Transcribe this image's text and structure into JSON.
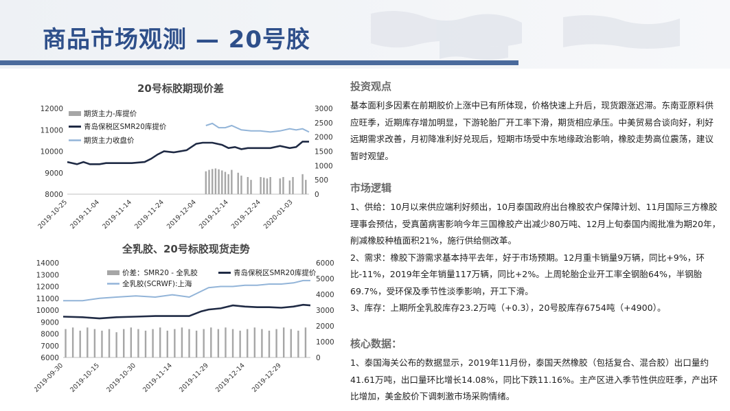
{
  "page": {
    "title": "商品市场观测 — 20号胶"
  },
  "colors": {
    "title": "#2e4f8a",
    "bar_fill": "#a6a6a6",
    "line_dark": "#1f2a44",
    "line_light": "#92b4d8"
  },
  "charts": {
    "top": {
      "title": "20号标胶期现价差",
      "legend": [
        "期货主力-库提价",
        "青岛保税区SMR20库提价",
        "期货主力收盘价"
      ],
      "x_labels": [
        "2019-10-25",
        "2019-11-04",
        "2019-11-14",
        "2019-11-24",
        "2019-12-04",
        "2019-12-14",
        "2019-12-24",
        "2020-01-03"
      ],
      "y_left_ticks": [
        "12000",
        "11000",
        "10000",
        "9000",
        "8000"
      ],
      "y_right_ticks": [
        "3000",
        "2500",
        "2000",
        "1500",
        "1000",
        "500",
        "0"
      ]
    },
    "bottom": {
      "title": "全乳胶、20号标胶现货走势",
      "legend": [
        "价差：SMR20 - 全乳胶",
        "青岛保税区SMR20库提价",
        "全乳胶(SCRWF):上海"
      ],
      "x_labels": [
        "2019-09-30",
        "2019-10-15",
        "2019-10-30",
        "2019-11-14",
        "2019-11-29",
        "2019-12-14",
        "2019-12-29"
      ],
      "y_left_ticks": [
        "14000",
        "13000",
        "12000",
        "11000",
        "10000",
        "9000",
        "8000",
        "7000",
        "6000"
      ],
      "y_right_ticks": [
        "6000",
        "5000",
        "4000",
        "3000",
        "2000",
        "1000",
        "0"
      ]
    }
  },
  "chart_data": [
    {
      "type": "line",
      "title": "20号标胶期现价差",
      "x_range": [
        "2019-10-25",
        "2020-01-08"
      ],
      "ylim_left": [
        8000,
        12000
      ],
      "ylim_right": [
        0,
        3000
      ],
      "series": [
        {
          "name": "期货主力-库提价",
          "type": "bar",
          "axis": "right",
          "x": [
            "2019-12-07",
            "2019-12-08",
            "2019-12-09",
            "2019-12-10",
            "2019-12-11",
            "2019-12-12",
            "2019-12-13",
            "2019-12-14",
            "2019-12-15",
            "2019-12-17",
            "2019-12-18",
            "2019-12-20",
            "2019-12-21",
            "2019-12-24",
            "2019-12-25",
            "2019-12-26",
            "2019-12-27",
            "2019-12-30",
            "2019-12-31",
            "2020-01-02",
            "2020-01-03",
            "2020-01-06",
            "2020-01-07"
          ],
          "values": [
            800,
            850,
            880,
            900,
            870,
            830,
            780,
            700,
            850,
            750,
            650,
            600,
            500,
            600,
            580,
            550,
            600,
            550,
            600,
            480,
            600,
            700,
            500
          ]
        },
        {
          "name": "青岛保税区SMR20库提价",
          "type": "line",
          "axis": "left",
          "x": [
            "2019-10-25",
            "2019-10-28",
            "2019-10-30",
            "2019-11-01",
            "2019-11-04",
            "2019-11-06",
            "2019-11-08",
            "2019-11-11",
            "2019-11-14",
            "2019-11-18",
            "2019-11-20",
            "2019-11-22",
            "2019-11-24",
            "2019-11-27",
            "2019-12-01",
            "2019-12-04",
            "2019-12-06",
            "2019-12-09",
            "2019-12-12",
            "2019-12-14",
            "2019-12-16",
            "2019-12-18",
            "2019-12-20",
            "2019-12-24",
            "2019-12-27",
            "2019-12-30",
            "2020-01-02",
            "2020-01-04",
            "2020-01-06",
            "2020-01-08"
          ],
          "values": [
            9500,
            9400,
            9500,
            9400,
            9400,
            9450,
            9450,
            9450,
            9450,
            9500,
            9650,
            9850,
            10000,
            9950,
            10050,
            10350,
            10400,
            10400,
            10300,
            10150,
            10200,
            10100,
            10150,
            10150,
            10150,
            10250,
            10150,
            10200,
            10450,
            10450
          ]
        },
        {
          "name": "期货主力收盘价",
          "type": "line",
          "axis": "left",
          "x": [
            "2019-12-07",
            "2019-12-09",
            "2019-12-11",
            "2019-12-13",
            "2019-12-15",
            "2019-12-18",
            "2019-12-21",
            "2019-12-24",
            "2019-12-27",
            "2019-12-30",
            "2020-01-02",
            "2020-01-04",
            "2020-01-06",
            "2020-01-08"
          ],
          "values": [
            11200,
            11300,
            11100,
            11100,
            11200,
            11000,
            10950,
            10950,
            10900,
            10950,
            11050,
            11000,
            11050,
            10900
          ]
        }
      ]
    },
    {
      "type": "line",
      "title": "全乳胶、20号标胶现货走势",
      "x_range": [
        "2019-09-30",
        "2020-01-10"
      ],
      "ylim_left": [
        6000,
        14000
      ],
      "ylim_right": [
        0,
        6000
      ],
      "series": [
        {
          "name": "价差：SMR20 - 全乳胶",
          "type": "bar",
          "axis": "right",
          "x": [
            "2019-10-01",
            "2019-10-04",
            "2019-10-07",
            "2019-10-10",
            "2019-10-13",
            "2019-10-16",
            "2019-10-19",
            "2019-10-22",
            "2019-10-25",
            "2019-10-28",
            "2019-10-31",
            "2019-11-03",
            "2019-11-06",
            "2019-11-09",
            "2019-11-12",
            "2019-11-15",
            "2019-11-18",
            "2019-11-21",
            "2019-11-24",
            "2019-11-27",
            "2019-11-30",
            "2019-12-03",
            "2019-12-06",
            "2019-12-09",
            "2019-12-12",
            "2019-12-15",
            "2019-12-18",
            "2019-12-21",
            "2019-12-24",
            "2019-12-27",
            "2019-12-30",
            "2020-01-02",
            "2020-01-05",
            "2020-01-08"
          ],
          "values": [
            1800,
            1900,
            1700,
            1900,
            1800,
            1700,
            1800,
            1600,
            1800,
            1900,
            1800,
            1700,
            1800,
            1900,
            1700,
            1800,
            1900,
            1800,
            1700,
            1800,
            1900,
            1800,
            1900,
            1800,
            1700,
            1800,
            1900,
            1800,
            1700,
            1800,
            1900,
            1800,
            1700,
            1900
          ]
        },
        {
          "name": "青岛保税区SMR20库提价",
          "type": "line",
          "axis": "left",
          "x": [
            "2019-09-30",
            "2019-10-08",
            "2019-10-15",
            "2019-10-22",
            "2019-10-30",
            "2019-11-07",
            "2019-11-14",
            "2019-11-21",
            "2019-11-26",
            "2019-11-29",
            "2019-12-04",
            "2019-12-09",
            "2019-12-14",
            "2019-12-19",
            "2019-12-24",
            "2019-12-29",
            "2020-01-03",
            "2020-01-07",
            "2020-01-10"
          ],
          "values": [
            9450,
            9400,
            9300,
            9400,
            9450,
            9500,
            9500,
            9500,
            9900,
            10050,
            10150,
            10400,
            10300,
            10250,
            10250,
            10200,
            10300,
            10450,
            10400
          ]
        },
        {
          "name": "全乳胶(SCRWF):上海",
          "type": "line",
          "axis": "left",
          "x": [
            "2019-09-30",
            "2019-10-08",
            "2019-10-15",
            "2019-10-22",
            "2019-10-30",
            "2019-11-07",
            "2019-11-14",
            "2019-11-21",
            "2019-11-26",
            "2019-11-29",
            "2019-12-04",
            "2019-12-09",
            "2019-12-14",
            "2019-12-19",
            "2019-12-24",
            "2019-12-29",
            "2020-01-03",
            "2020-01-07",
            "2020-01-10"
          ],
          "values": [
            10800,
            10800,
            11000,
            11100,
            11200,
            11100,
            11300,
            11100,
            11600,
            11900,
            12000,
            12000,
            12100,
            12100,
            12200,
            12200,
            12300,
            12500,
            12500
          ]
        }
      ]
    }
  ],
  "sections": [
    {
      "heading": "投资观点",
      "paragraphs": [
        "基本面利多因素在前期胶价上涨中已有所体现，价格快速上升后，现货跟涨迟滞。东南亚原料供应旺季，近期库存增加明显，下游轮胎厂开工率下滑，期货相应承压。中美贸易合谈向好，利好远期需求改善，月初降准利好兑现后，短期市场受中东地缘政治影响，橡胶走势高位震荡，建议暂时观望。"
      ]
    },
    {
      "heading": "市场逻辑",
      "paragraphs": [
        "1、供给：10月以来供应端利好频出，10月泰国政府出台橡胶农户保障计划、11月国际三方橡胶理事会预估，受真菌病害影响今年三国橡胶产出减少80万吨、12月上旬泰国内阁批准为期20年，削减橡胶种植面积21%，施行供给侧改革。",
        "2、需求：橡胶下游需求基本持平去年，好于市场预期。12月重卡销量9万辆，同比+9%，环比-11%，2019年全年销量117万辆，同比+2%。上周轮胎企业开工率全钢胎64%，半钢胎69.7%，受环保及季节性淡季影响，开工下滑。",
        "3、库存：上期所全乳胶库存23.2万吨（+0.3），20号胶库存6754吨（+4900）。"
      ]
    },
    {
      "heading": "核心数据：",
      "paragraphs": [
        "1、泰国海关公布的数据显示，2019年11月份，泰国天然橡胶（包括复合、混合胶）出口量约41.61万吨，出口量环比增长14.08%，同比下跌11.16%。主产区进入季节性供应旺季，产出环比增加，美金胶价下调刺激市场采购情绪。"
      ]
    }
  ]
}
